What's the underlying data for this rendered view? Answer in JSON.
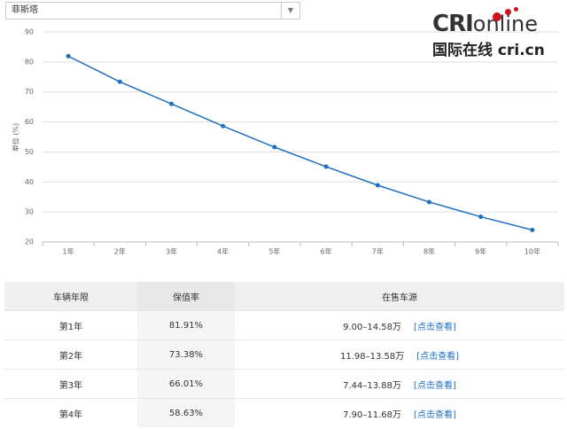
{
  "selector": {
    "label": "菲斯塔"
  },
  "logo": {
    "brand": "CRI",
    "suffix": "online",
    "tagline": "国际在线 cri.cn"
  },
  "chart_data": {
    "type": "line",
    "y_label": "单位 (%)",
    "categories": [
      "1年",
      "2年",
      "3年",
      "4年",
      "5年",
      "6年",
      "7年",
      "8年",
      "9年",
      "10年"
    ],
    "values": [
      81.91,
      73.38,
      66.01,
      58.63,
      51.6,
      45.1,
      38.9,
      33.3,
      28.4,
      24.0
    ],
    "color": "#1f6fc0",
    "ylim": [
      20,
      90
    ],
    "yticks": [
      20,
      30,
      40,
      50,
      60,
      70,
      80,
      90
    ],
    "grid": true
  },
  "table": {
    "header": [
      "车辆年限",
      "保值率",
      "在售车源"
    ],
    "rows": [
      [
        "第1年",
        "81.91%",
        "9.00–14.58万",
        "[点击查看]"
      ],
      [
        "第2年",
        "73.38%",
        "11.98–13.58万",
        "[点击查看]"
      ],
      [
        "第3年",
        "66.01%",
        "7.44–13.88万",
        "[点击查看]"
      ],
      [
        "第4年",
        "58.63%",
        "7.90–11.68万",
        "[点击查看]"
      ]
    ]
  }
}
